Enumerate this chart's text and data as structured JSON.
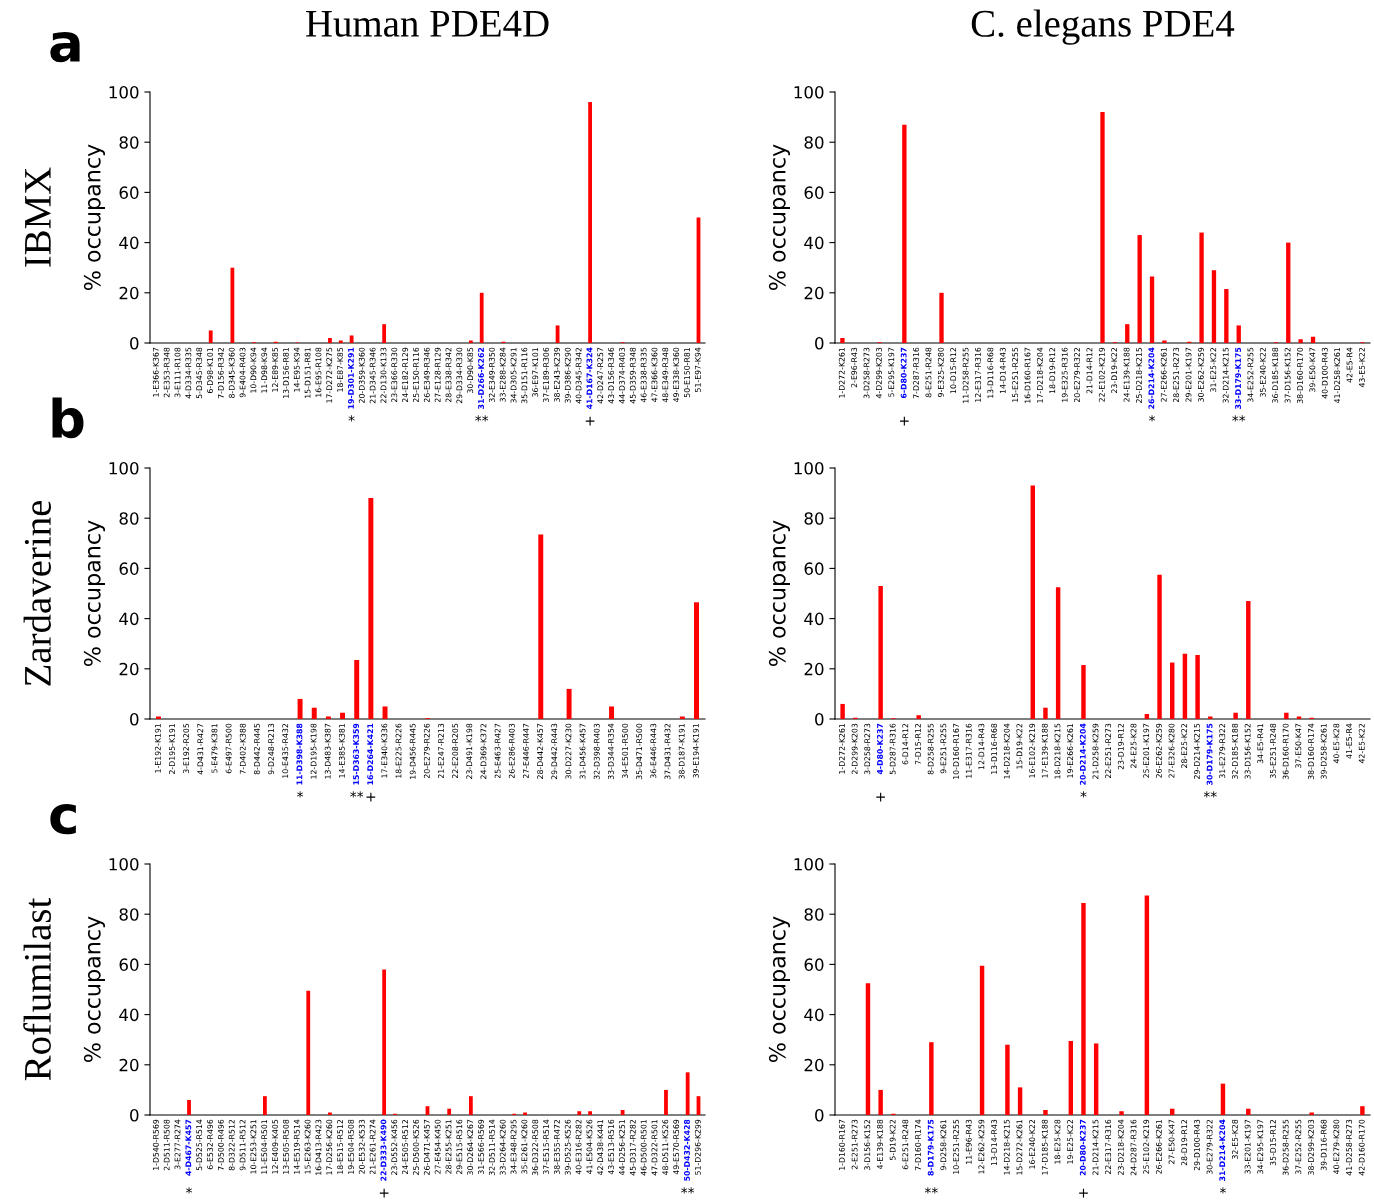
{
  "chart_data": [
    {
      "type": "bar",
      "title": "Human PDE4D",
      "ylabel": "% occupancy",
      "color": "#ff0000",
      "ylim": [
        0,
        100
      ],
      "yticks": [
        0,
        20,
        40,
        60,
        80,
        100
      ],
      "grid": false,
      "legend": false,
      "categories": [
        "1-E366-K367",
        "2-E353-R348",
        "3-E111-R108",
        "4-D334-R335",
        "5-D345-R348",
        "6-D98-K101",
        "7-D156-R342",
        "8-D345-K360",
        "9-E404-R403",
        "10-D90-K94",
        "11-D98-K94",
        "12-E89-K85",
        "13-D156-R81",
        "14-E95-K94",
        "15-D151-R81",
        "16-E95-R108",
        "17-D272-K275",
        "18-E87-K85",
        "19-D301-K291",
        "20-D359-K360",
        "21-D345-R346",
        "22-D130-K133",
        "23-E366-R330",
        "24-E182-R129",
        "25-E150-R116",
        "26-E349-R346",
        "27-E128-R129",
        "28-E338-R342",
        "29-D334-R330",
        "30-D90-K85",
        "31-D266-K262",
        "32-E349-R350",
        "33-E288-K284",
        "34-D305-K291",
        "35-D151-R116",
        "36-E97-K101",
        "37-E189-R306",
        "38-E243-K239",
        "39-D386-K290",
        "40-D345-R342",
        "41-D167-K324",
        "42-D247-R257",
        "43-D156-R346",
        "44-D374-R403",
        "45-D359-R348",
        "46-E338-R335",
        "47-E366-K360",
        "48-E349-R348",
        "49-E338-K360",
        "50-E150-R81",
        "51-E97-K94"
      ],
      "values": [
        0,
        0,
        0,
        0,
        0,
        5,
        0,
        30,
        0,
        0.3,
        0,
        0.5,
        0,
        0.2,
        0,
        0,
        2,
        1,
        3,
        0,
        0,
        7.5,
        0,
        0,
        0,
        0,
        0,
        0,
        0,
        1,
        20,
        0,
        0.5,
        0,
        0,
        0,
        0,
        7,
        0,
        0,
        96,
        0,
        0,
        0.3,
        0,
        0,
        0,
        0,
        0,
        0,
        50
      ],
      "value_labels": [
        null,
        null,
        null,
        null,
        null,
        null,
        null,
        null,
        null,
        null,
        null,
        null,
        null,
        null,
        null,
        null,
        null,
        null,
        "*",
        null,
        null,
        null,
        null,
        null,
        null,
        null,
        null,
        null,
        null,
        null,
        "**",
        null,
        null,
        null,
        null,
        null,
        null,
        null,
        null,
        null,
        "+",
        null,
        null,
        null,
        null,
        null,
        null,
        null,
        null,
        null,
        null
      ],
      "annotations": [
        "a",
        "IBMX"
      ]
    },
    {
      "type": "bar",
      "title": "C. elegans PDE4",
      "ylabel": "% occupancy",
      "color": "#ff0000",
      "ylim": [
        0,
        100
      ],
      "yticks": [
        0,
        20,
        40,
        60,
        80,
        100
      ],
      "grid": false,
      "legend": false,
      "categories": [
        "1-D272-K261",
        "2-E96-R43",
        "3-D258-R273",
        "4-D299-K203",
        "5-E295-K197",
        "6-D80-K237",
        "7-D287-R316",
        "8-E251-R248",
        "9-E325-K280",
        "10-D15-R12",
        "11-D258-R255",
        "12-E317-R316",
        "13-D116-R68",
        "14-D14-R43",
        "15-E251-R255",
        "16-D160-R167",
        "17-D218-K204",
        "18-D19-R12",
        "19-E325-R316",
        "20-E279-R322",
        "21-D14-R12",
        "22-E102-K219",
        "23-D19-K22",
        "24-E139-K188",
        "25-D218-K215",
        "26-D214-K204",
        "27-E266-K261",
        "28-E251-R273",
        "29-E201-K197",
        "30-E262-K259",
        "31-E25-K22",
        "32-D214-K215",
        "33-D179-K175",
        "34-E252-R255",
        "35-E240-K22",
        "36-D185-K188",
        "37-D156-K152",
        "38-D160-R170",
        "39-E50-K47",
        "40-D100-R43",
        "41-D258-K261",
        "42-E5-R4",
        "43-E5-K22"
      ],
      "values": [
        2,
        0,
        0,
        0.3,
        0,
        87,
        0,
        0,
        20,
        0,
        0,
        0,
        0,
        0,
        0,
        0,
        0,
        0,
        0,
        0,
        0,
        92,
        0.3,
        7.5,
        43,
        26.5,
        1,
        0,
        0.5,
        44,
        29,
        21.5,
        7,
        0,
        0,
        0.3,
        40,
        1.5,
        2.5,
        0,
        0,
        0,
        0.3
      ],
      "value_labels": [
        null,
        null,
        null,
        null,
        null,
        "+",
        null,
        null,
        null,
        null,
        null,
        null,
        null,
        null,
        null,
        null,
        null,
        null,
        null,
        null,
        null,
        null,
        null,
        null,
        null,
        "*",
        null,
        null,
        null,
        null,
        null,
        null,
        "**",
        null,
        null,
        null,
        null,
        null,
        null,
        null,
        null,
        null,
        null
      ]
    },
    {
      "type": "bar",
      "ylabel": "% occupancy",
      "color": "#ff0000",
      "ylim": [
        0,
        100
      ],
      "yticks": [
        0,
        20,
        40,
        60,
        80,
        100
      ],
      "grid": false,
      "legend": false,
      "categories": [
        "1-E192-K191",
        "2-D195-K191",
        "3-E192-R205",
        "4-D431-R427",
        "5-E479-K381",
        "6-E497-R500",
        "7-D402-K388",
        "8-D442-R445",
        "9-D248-R213",
        "10-E435-R432",
        "11-D398-K388",
        "12-D195-K198",
        "13-D483-K387",
        "14-E385-K381",
        "15-D363-K359",
        "16-D264-K421",
        "17-E340-K336",
        "18-E225-R226",
        "19-D456-R445",
        "20-E279-R226",
        "21-E247-R213",
        "22-E208-R205",
        "23-D491-K198",
        "24-D369-K372",
        "25-E463-R427",
        "26-E286-R403",
        "27-E446-R447",
        "28-D442-K457",
        "29-D442-R443",
        "30-D227-K230",
        "31-D456-K457",
        "32-D398-R403",
        "33-D344-R354",
        "34-E501-R500",
        "35-D471-R500",
        "36-E446-R443",
        "37-D431-R432",
        "38-D187-K191",
        "39-E194-K191"
      ],
      "values": [
        1,
        0,
        0,
        0,
        0,
        0,
        0,
        0,
        0,
        0,
        8,
        4.5,
        1,
        2.5,
        23.5,
        88,
        5,
        0,
        0,
        0.3,
        0,
        0,
        0,
        0,
        0,
        0,
        0,
        73.5,
        0,
        12,
        0,
        0,
        5,
        0,
        0,
        0,
        0,
        1,
        46.5
      ],
      "value_labels": [
        null,
        null,
        null,
        null,
        null,
        null,
        null,
        null,
        null,
        null,
        "*",
        null,
        null,
        null,
        "**",
        "+",
        null,
        null,
        null,
        null,
        null,
        null,
        null,
        null,
        null,
        null,
        null,
        null,
        null,
        null,
        null,
        null,
        null,
        null,
        null,
        null,
        null,
        null,
        null
      ],
      "annotations": [
        "b",
        "Zardaverine"
      ]
    },
    {
      "type": "bar",
      "ylabel": "% occupancy",
      "color": "#ff0000",
      "ylim": [
        0,
        100
      ],
      "yticks": [
        0,
        20,
        40,
        60,
        80,
        100
      ],
      "grid": false,
      "legend": false,
      "categories": [
        "1-D272-K261",
        "2-D299-K203",
        "3-D258-R273",
        "4-D80-K237",
        "5-D287-R316",
        "6-D14-R12",
        "7-D15-R12",
        "8-D258-R255",
        "9-E251-R255",
        "10-D160-R167",
        "11-E317-R316",
        "12-D14-R43",
        "13-D116-R68",
        "14-D218-K204",
        "15-D19-K22",
        "16-E102-K219",
        "17-E139-K188",
        "18-D218-K215",
        "19-E266-K261",
        "20-D214-K204",
        "21-D258-K259",
        "22-E251-R273",
        "23-D19-R12",
        "24-E25-K28",
        "25-E201-K197",
        "26-E262-K259",
        "27-E326-K280",
        "28-E25-K22",
        "29-D214-K215",
        "30-D179-K175",
        "31-E279-R322",
        "32-D185-K188",
        "33-D156-K152",
        "34-E5-R41",
        "35-E251-R248",
        "36-D160-R170",
        "37-E50-K47",
        "38-D160-R174",
        "39-D258-K261",
        "40-E5-K28",
        "41-E5-R4",
        "42-E5-K22"
      ],
      "values": [
        6,
        0.5,
        0,
        53,
        0.3,
        0,
        1.5,
        0,
        0,
        0,
        0,
        0,
        0,
        0,
        0,
        93,
        4.5,
        52.5,
        0,
        21.5,
        0,
        0,
        0,
        0,
        2,
        57.5,
        22.5,
        26,
        25.5,
        1,
        0,
        2.5,
        47,
        0,
        0,
        2.5,
        1,
        0.5,
        0,
        0,
        0,
        0
      ],
      "value_labels": [
        null,
        null,
        null,
        "+",
        null,
        null,
        null,
        null,
        null,
        null,
        null,
        null,
        null,
        null,
        null,
        null,
        null,
        null,
        null,
        "*",
        null,
        null,
        null,
        null,
        null,
        null,
        null,
        null,
        null,
        "**",
        null,
        null,
        null,
        null,
        null,
        null,
        null,
        null,
        null,
        null,
        null,
        null
      ]
    },
    {
      "type": "bar",
      "ylabel": "% occupancy",
      "color": "#ff0000",
      "ylim": [
        0,
        100
      ],
      "yticks": [
        0,
        20,
        40,
        60,
        80,
        100
      ],
      "grid": false,
      "legend": false,
      "categories": [
        "1-D540-R569",
        "2-D511-R508",
        "3-E277-R274",
        "4-D467-K457",
        "5-D525-R514",
        "6-E532-R496",
        "7-D500-R496",
        "8-D322-R512",
        "9-D511-R512",
        "10-E253-K251",
        "11-E504-R501",
        "12-E409-K405",
        "13-E505-R508",
        "14-E519-R514",
        "15-E263-K260",
        "16-D413-R423",
        "17-D256-K260",
        "18-E515-R512",
        "19-E504-R508",
        "20-E532-K533",
        "21-E261-R274",
        "22-D333-K490",
        "23-D552-K456",
        "24-E505-R512",
        "25-D500-K526",
        "26-D471-K457",
        "27-E454-K450",
        "28-E255-K251",
        "29-E515-R516",
        "30-D264-K267",
        "31-E566-R569",
        "32-D511-R514",
        "33-D264-K260",
        "34-E348-R295",
        "35-E261-K260",
        "36-D322-R508",
        "37-E515-R514",
        "38-E355-R472",
        "39-D525-K526",
        "40-E316-R282",
        "41-E504-K526",
        "42-D438-K441",
        "43-E513-R516",
        "44-D256-K251",
        "45-D317-R282",
        "46-D500-R501",
        "47-D322-R501",
        "48-D511-K526",
        "49-E570-R569",
        "50-D432-K428",
        "51-D296-K299"
      ],
      "values": [
        0,
        0,
        0,
        6,
        0,
        0,
        0,
        0,
        0,
        0,
        7.5,
        0,
        0,
        0,
        49.5,
        0,
        1,
        0,
        0,
        0,
        0,
        58,
        0.5,
        0,
        0,
        3.5,
        0,
        2.5,
        0,
        7.5,
        0,
        0,
        0,
        0.5,
        1,
        0,
        0,
        0,
        0,
        1.5,
        1.5,
        0,
        0,
        2,
        0,
        0,
        0,
        10,
        0,
        17,
        7.5
      ],
      "value_labels": [
        null,
        null,
        null,
        "*",
        null,
        null,
        null,
        null,
        null,
        null,
        null,
        null,
        null,
        null,
        null,
        null,
        null,
        null,
        null,
        null,
        null,
        "+",
        null,
        null,
        null,
        null,
        null,
        null,
        null,
        null,
        null,
        null,
        null,
        null,
        null,
        null,
        null,
        null,
        null,
        null,
        null,
        null,
        null,
        null,
        null,
        null,
        null,
        null,
        null,
        "**",
        null
      ],
      "annotations": [
        "c",
        "Roflumilast"
      ]
    },
    {
      "type": "bar",
      "ylabel": "% occupancy",
      "color": "#ff0000",
      "ylim": [
        0,
        100
      ],
      "yticks": [
        0,
        20,
        40,
        60,
        80,
        100
      ],
      "grid": false,
      "legend": false,
      "categories": [
        "1-D160-R167",
        "2-E251-R273",
        "3-D156-K152",
        "4-E139-K188",
        "5-D19-K22",
        "6-E251-R248",
        "7-D160-R174",
        "8-D179-K175",
        "9-D258-K261",
        "10-E251-R255",
        "11-E96-R43",
        "12-E262-K259",
        "13-D14-R43",
        "14-D218-K215",
        "15-D272-K261",
        "16-E240-K22",
        "17-D185-K188",
        "18-E25-K28",
        "19-E25-K22",
        "20-D80-K237",
        "21-D214-K215",
        "22-E317-R316",
        "23-D218-K204",
        "24-D287-R316",
        "25-E102-K219",
        "26-E266-K261",
        "27-E50-K47",
        "28-D19-R12",
        "29-D100-R43",
        "30-E279-R322",
        "31-D214-K204",
        "32-E5-K28",
        "33-E201-K197",
        "34-E295-K197",
        "35-D15-R12",
        "36-D258-R255",
        "37-E252-R255",
        "38-D299-K203",
        "39-D116-R68",
        "40-E279-K280",
        "41-D258-R273",
        "42-D160-R170"
      ],
      "values": [
        0,
        0,
        52.5,
        10,
        0.5,
        0,
        0,
        29,
        0,
        0,
        0,
        59.5,
        0,
        28,
        11,
        0,
        2,
        0,
        29.5,
        84.5,
        28.5,
        0,
        1.5,
        0,
        87.5,
        0,
        2.5,
        0,
        0,
        0,
        12.5,
        0,
        2.5,
        0,
        0,
        0,
        0,
        1,
        0,
        0,
        0,
        3.5
      ],
      "value_labels": [
        null,
        null,
        null,
        null,
        null,
        null,
        null,
        "**",
        null,
        null,
        null,
        null,
        null,
        null,
        null,
        null,
        null,
        null,
        null,
        "+",
        null,
        null,
        null,
        null,
        null,
        null,
        null,
        null,
        null,
        null,
        "*",
        null,
        null,
        null,
        null,
        null,
        null,
        null,
        null,
        null,
        null,
        null
      ]
    }
  ]
}
